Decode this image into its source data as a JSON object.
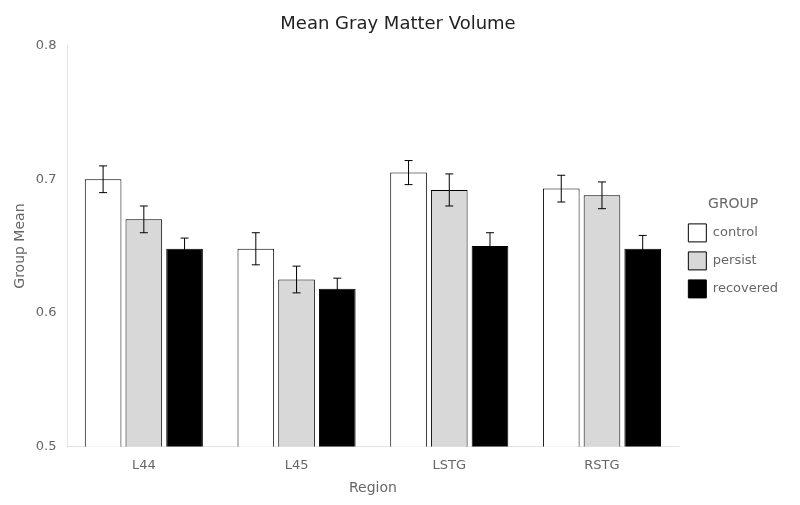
{
  "chart_data": {
    "type": "bar",
    "title": "Mean Gray Matter Volume",
    "x_label": "Region",
    "y_label": "Group Mean",
    "categories": [
      "L44",
      "L45",
      "LSTG",
      "RSTG"
    ],
    "series": [
      {
        "name": "control",
        "color": "white",
        "values": [
          0.7,
          0.648,
          0.705,
          0.693
        ],
        "errors": [
          0.01,
          0.012,
          0.009,
          0.01
        ]
      },
      {
        "name": "persist",
        "color": "#d8d8d8",
        "values": [
          0.67,
          0.625,
          0.692,
          0.688
        ],
        "errors": [
          0.01,
          0.01,
          0.012,
          0.01
        ]
      },
      {
        "name": "recovered",
        "color": "black",
        "values": [
          0.648,
          0.618,
          0.65,
          0.648
        ],
        "errors": [
          0.008,
          0.008,
          0.01,
          0.01
        ]
      }
    ],
    "legend_title": "GROUP",
    "legend": "right",
    "ylim": [
      0.5,
      0.8
    ],
    "yticks": [
      0.5,
      0.6,
      0.7,
      0.8
    ],
    "grid": false
  }
}
